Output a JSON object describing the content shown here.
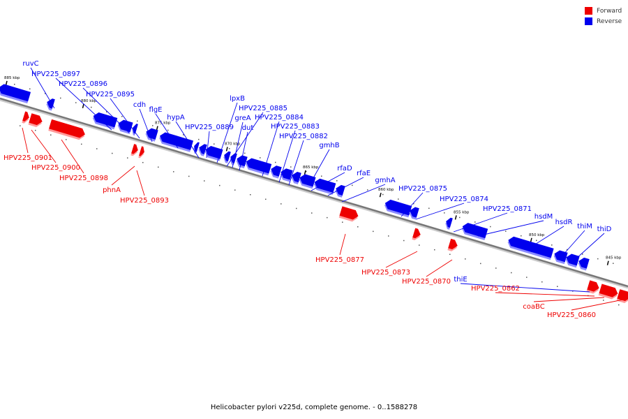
{
  "colors": {
    "forward": "#ee0000",
    "reverse": "#0000ee",
    "backbone": "#777777"
  },
  "legend": {
    "forward_label": "Forward",
    "reverse_label": "Reverse"
  },
  "caption": "Helicobacter pylori v225d, complete genome. - 0..1588278",
  "ticks": [
    "885 kbp",
    "880 kbp",
    "875 kbp",
    "870 kbp",
    "865 kbp",
    "860 kbp",
    "855 kbp",
    "850 kbp",
    "845 kbp"
  ],
  "forward_labels": [
    "HPV225_0901",
    "HPV225_0900",
    "HPV225_0898",
    "phnA",
    "HPV225_0893",
    "HPV225_0877",
    "HPV225_0873",
    "HPV225_0870",
    "thiE",
    "HPV225_0862",
    "coaBC",
    "HPV225_0860"
  ],
  "reverse_labels": [
    "ruvC",
    "HPV225_0897",
    "HPV225_0896",
    "HPV225_0895",
    "cdh",
    "flgE",
    "hypA",
    "HPV225_0889",
    "lpxB",
    "HPV225_0885",
    "greA",
    "dut",
    "HPV225_0884",
    "HPV225_0883",
    "HPV225_0882",
    "gmhB",
    "rfaD",
    "rfaE",
    "gmhA",
    "HPV225_0875",
    "HPV225_0874",
    "HPV225_0871",
    "hsdM",
    "hsdR",
    "thiM",
    "thiD"
  ]
}
